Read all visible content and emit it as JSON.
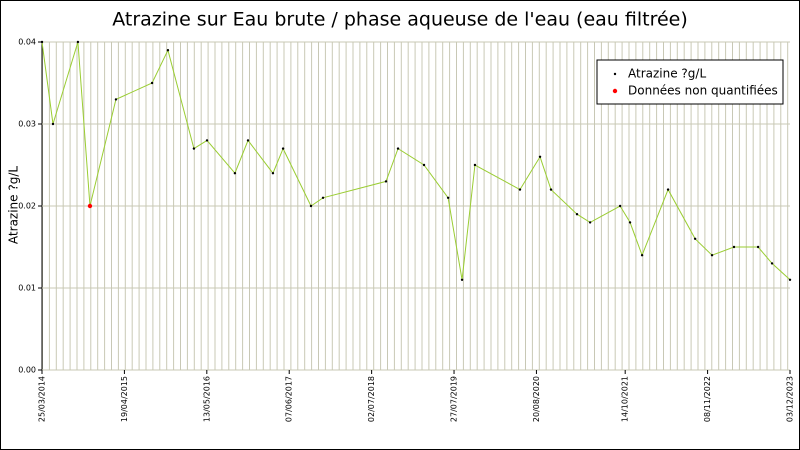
{
  "chart_data": {
    "type": "line",
    "title": "Atrazine sur Eau brute / phase aqueuse de l'eau (eau filtrée)",
    "y_label": "Atrazine ?g/L",
    "xlim": [
      "25/03/2014",
      "03/12/2023"
    ],
    "xticks": [
      "25/03/2014",
      "19/04/2015",
      "13/05/2016",
      "07/06/2017",
      "02/07/2018",
      "27/07/2019",
      "20/08/2020",
      "14/10/2021",
      "08/11/2022",
      "03/12/2023"
    ],
    "ylim": [
      0,
      0.04
    ],
    "yticks": [
      {
        "value": 0,
        "label": "0.00"
      },
      0.01,
      0.02,
      0.03,
      0.04
    ],
    "grid": true,
    "legend": "top-right",
    "series": [
      {
        "name": "Atrazine ?g/L",
        "color": "#9acd32",
        "marker_color": "#000000",
        "x": [
          "25/03/2014",
          "16/05/2014",
          "11/09/2014",
          "07/11/2014",
          "10/03/2015",
          "28/08/2015",
          "11/11/2015",
          "13/03/2016",
          "14/05/2016",
          "23/09/2016",
          "24/11/2016",
          "22/03/2017",
          "09/05/2017",
          "18/09/2017",
          "14/11/2017",
          "08/09/2018",
          "04/11/2018",
          "07/03/2019",
          "29/06/2019",
          "03/09/2019",
          "03/11/2019",
          "03/06/2020",
          "06/09/2020",
          "28/10/2020",
          "28/02/2021",
          "01/05/2021",
          "20/09/2021",
          "06/11/2021",
          "02/01/2022",
          "05/05/2022",
          "10/09/2022",
          "29/11/2022",
          "13/03/2023",
          "05/07/2023",
          "09/09/2023",
          "03/12/2023"
        ],
        "values": [
          0.04,
          0.03,
          0.04,
          0.02,
          0.033,
          0.035,
          0.039,
          0.027,
          0.028,
          0.024,
          0.028,
          0.024,
          0.027,
          0.02,
          0.021,
          0.023,
          0.027,
          0.025,
          0.021,
          0.011,
          0.025,
          0.022,
          0.026,
          0.022,
          0.019,
          0.018,
          0.02,
          0.018,
          0.014,
          0.022,
          0.016,
          0.014,
          0.015,
          0.015,
          0.013,
          0.011
        ]
      },
      {
        "name": "Données non quantifiées",
        "color": "#ff0000",
        "x": [
          "07/11/2014"
        ],
        "values": [
          0.02
        ]
      }
    ]
  }
}
